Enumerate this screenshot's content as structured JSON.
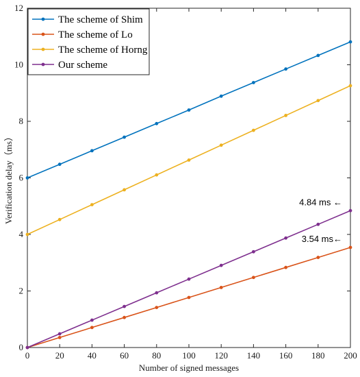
{
  "chart_data": {
    "type": "line",
    "xlabel": "Number of signed messages",
    "ylabel": "Verification delay（ms）",
    "xlim": [
      0,
      200
    ],
    "ylim": [
      0,
      12
    ],
    "xticks": [
      0,
      20,
      40,
      60,
      80,
      100,
      120,
      140,
      160,
      180,
      200
    ],
    "yticks": [
      0,
      2,
      4,
      6,
      8,
      10,
      12
    ],
    "grid": false,
    "legend_position": "top-left",
    "x": [
      0,
      20,
      40,
      60,
      80,
      100,
      120,
      140,
      160,
      180,
      200
    ],
    "series": [
      {
        "name": "The scheme of Shim",
        "color": "#0072BD",
        "values": [
          6.0,
          6.48,
          6.96,
          7.44,
          7.92,
          8.4,
          8.89,
          9.37,
          9.85,
          10.33,
          10.81
        ]
      },
      {
        "name": "The scheme of Lo",
        "color": "#D95319",
        "values": [
          0.0,
          0.354,
          0.708,
          1.062,
          1.416,
          1.77,
          2.124,
          2.478,
          2.832,
          3.186,
          3.54
        ]
      },
      {
        "name": "The scheme of Horng",
        "color": "#EDB120",
        "values": [
          4.0,
          4.526,
          5.052,
          5.578,
          6.104,
          6.63,
          7.156,
          7.682,
          8.208,
          8.734,
          9.26
        ]
      },
      {
        "name": "Our scheme",
        "color": "#7E2F8E",
        "values": [
          0.0,
          0.484,
          0.968,
          1.452,
          1.936,
          2.42,
          2.904,
          3.388,
          3.872,
          4.356,
          4.84
        ]
      }
    ],
    "annotations": [
      {
        "text": "4.84 ms ←",
        "x": 200,
        "y": 4.84
      },
      {
        "text": "3.54 ms←",
        "x": 200,
        "y": 3.54
      }
    ]
  }
}
